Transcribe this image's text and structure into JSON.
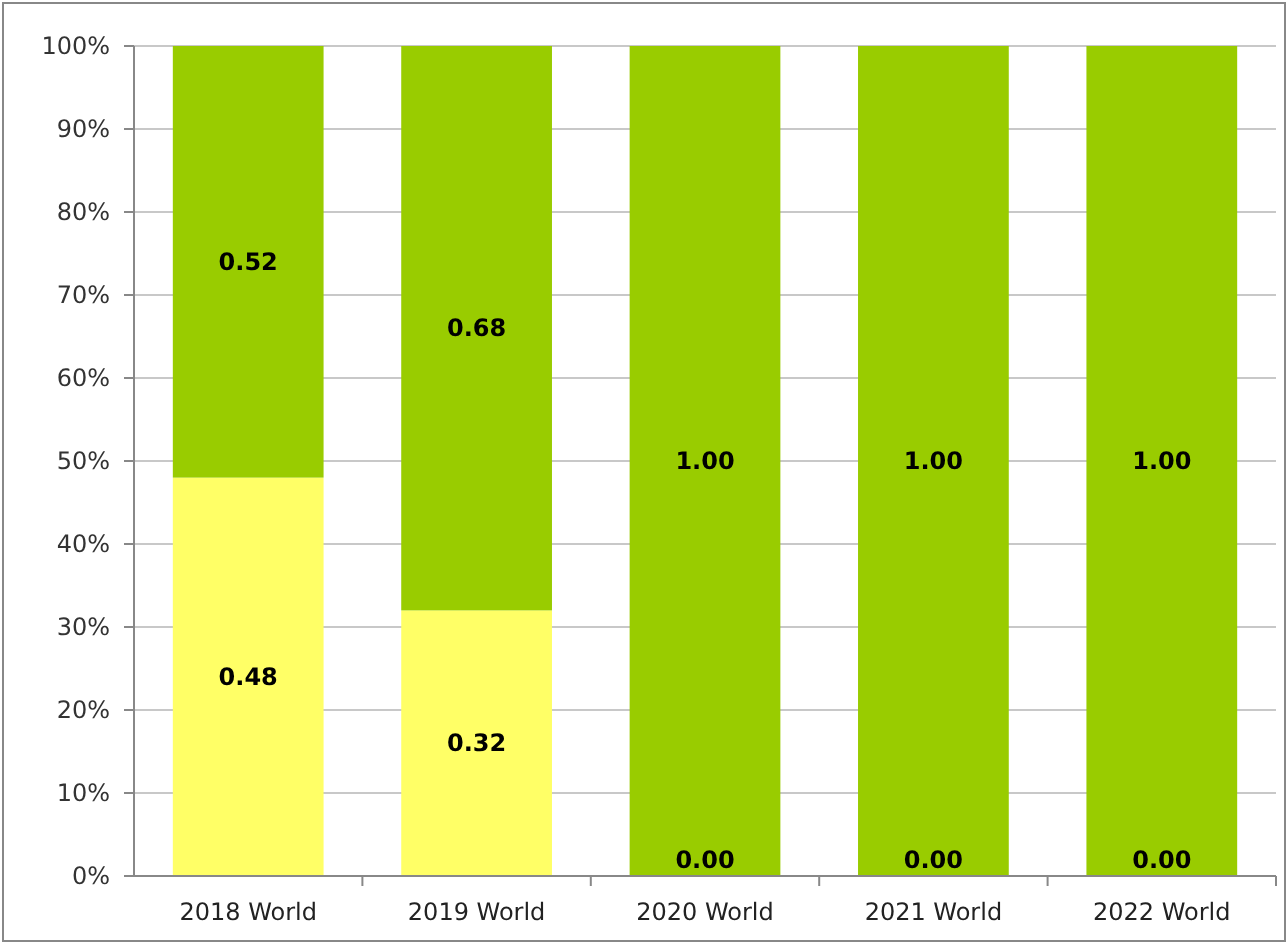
{
  "chart_data": {
    "type": "bar",
    "stacked": true,
    "categories": [
      "2018 World",
      "2019 World",
      "2020 World",
      "2021 World",
      "2022 World"
    ],
    "series": [
      {
        "color": "#ffff66",
        "values": [
          0.48,
          0.32,
          0,
          0,
          0
        ],
        "value_labels": [
          "0.48",
          "0.32",
          null,
          null,
          null
        ]
      },
      {
        "color": "#99cc00",
        "values": [
          0.52,
          0.68,
          1,
          1,
          1
        ],
        "value_labels": [
          "0.52",
          "0.68",
          "1.00",
          "1.00",
          "1.00"
        ]
      }
    ],
    "annotations": [
      {
        "text": "0.00",
        "x": "2020 World",
        "y": 0
      },
      {
        "text": "0.00",
        "x": "2021 World",
        "y": 0
      },
      {
        "text": "0.00",
        "x": "2022 World",
        "y": 0
      }
    ],
    "ylim": [
      0,
      1
    ],
    "yticks": [
      {
        "value": 0,
        "label": "0%"
      },
      {
        "value": 0.1,
        "label": "10%"
      },
      {
        "value": 0.2,
        "label": "20%"
      },
      {
        "value": 0.3,
        "label": "30%"
      },
      {
        "value": 0.4,
        "label": "40%"
      },
      {
        "value": 0.5,
        "label": "50%"
      },
      {
        "value": 0.6,
        "label": "60%"
      },
      {
        "value": 0.7,
        "label": "70%"
      },
      {
        "value": 0.8,
        "label": "80%"
      },
      {
        "value": 0.9,
        "label": "90%"
      },
      {
        "value": 1,
        "label": "100%"
      }
    ],
    "grid": "y"
  }
}
